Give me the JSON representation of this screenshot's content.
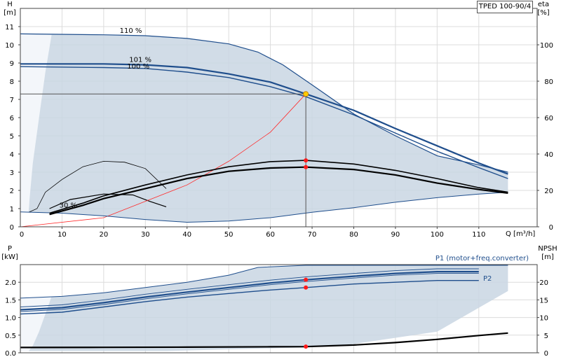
{
  "model": "TPED 100-90/4",
  "chart_data": [
    {
      "type": "line",
      "name": "head-efficiency",
      "y_title_top": "H",
      "y_unit": "[m]",
      "y2_title_top": "eta",
      "y2_unit": "[%]",
      "x_title": "Q [m³/h]",
      "xlim": [
        0,
        124
      ],
      "ylim": [
        0,
        12
      ],
      "y2lim": [
        0,
        120
      ],
      "x_ticks": [
        10,
        20,
        30,
        40,
        50,
        60,
        70,
        80,
        90,
        100,
        110
      ],
      "y_ticks": [
        0,
        1,
        2,
        3,
        4,
        5,
        6,
        7,
        8,
        9,
        10,
        11
      ],
      "y2_ticks": [
        0,
        20,
        40,
        60,
        80,
        100
      ],
      "duty_point": {
        "x": 68.5,
        "y": 7.3
      },
      "operating_area_upper": [
        [
          0,
          10.6
        ],
        [
          20,
          10.55
        ],
        [
          30,
          10.5
        ],
        [
          40,
          10.35
        ],
        [
          50,
          10.05
        ],
        [
          57,
          9.6
        ],
        [
          63,
          8.9
        ],
        [
          70,
          7.8
        ],
        [
          80,
          6.2
        ],
        [
          90,
          5.0
        ],
        [
          100,
          3.9
        ],
        [
          110,
          3.4
        ],
        [
          117,
          3.0
        ]
      ],
      "operating_area_lower": [
        [
          0,
          0.82
        ],
        [
          10,
          0.75
        ],
        [
          20,
          0.6
        ],
        [
          30,
          0.4
        ],
        [
          40,
          0.25
        ],
        [
          50,
          0.32
        ],
        [
          60,
          0.5
        ],
        [
          70,
          0.8
        ],
        [
          80,
          1.05
        ],
        [
          90,
          1.35
        ],
        [
          100,
          1.6
        ],
        [
          110,
          1.8
        ],
        [
          117,
          1.9
        ]
      ],
      "series": [
        {
          "name": "110 %",
          "label": "110 %",
          "values": [
            [
              0,
              10.6
            ],
            [
              20,
              10.55
            ],
            [
              30,
              10.5
            ],
            [
              40,
              10.35
            ],
            [
              50,
              10.05
            ],
            [
              57,
              9.6
            ],
            [
              63,
              8.9
            ],
            [
              70,
              7.8
            ],
            [
              80,
              6.2
            ],
            [
              90,
              5.0
            ],
            [
              100,
              3.9
            ],
            [
              110,
              3.4
            ],
            [
              117,
              3.0
            ]
          ]
        },
        {
          "name": "101 %",
          "label": "101 %",
          "values": [
            [
              0,
              8.95
            ],
            [
              20,
              8.95
            ],
            [
              30,
              8.9
            ],
            [
              40,
              8.75
            ],
            [
              50,
              8.4
            ],
            [
              60,
              7.95
            ],
            [
              68.5,
              7.3
            ],
            [
              80,
              6.4
            ],
            [
              90,
              5.4
            ],
            [
              100,
              4.45
            ],
            [
              110,
              3.5
            ],
            [
              117,
              2.9
            ]
          ]
        },
        {
          "name": "100 %",
          "label": "100 %",
          "values": [
            [
              0,
              8.8
            ],
            [
              20,
              8.75
            ],
            [
              30,
              8.7
            ],
            [
              40,
              8.5
            ],
            [
              50,
              8.2
            ],
            [
              60,
              7.7
            ],
            [
              68.5,
              7.15
            ],
            [
              80,
              6.15
            ],
            [
              90,
              5.15
            ],
            [
              100,
              4.15
            ],
            [
              110,
              3.25
            ],
            [
              117,
              2.65
            ]
          ]
        },
        {
          "name": "partial load",
          "label": "",
          "values": [
            [
              2,
              0.8
            ],
            [
              4,
              1.0
            ],
            [
              6,
              1.9
            ],
            [
              10,
              2.6
            ],
            [
              15,
              3.3
            ],
            [
              20,
              3.6
            ],
            [
              25,
              3.55
            ],
            [
              30,
              3.2
            ],
            [
              35,
              2.1
            ]
          ]
        },
        {
          "name": "partial load eta",
          "label": "",
          "values": [
            [
              7,
              1.0
            ],
            [
              12,
              1.5
            ],
            [
              20,
              1.8
            ],
            [
              27,
              1.75
            ],
            [
              31,
              1.4
            ],
            [
              35,
              1.1
            ]
          ]
        },
        {
          "name": "system curve",
          "label": "",
          "values": [
            [
              0,
              0.0
            ],
            [
              20,
              0.5
            ],
            [
              40,
              2.3
            ],
            [
              50,
              3.6
            ],
            [
              60,
              5.2
            ],
            [
              68.5,
              7.3
            ]
          ]
        }
      ],
      "eta_series": [
        {
          "name": "eta upper",
          "values": [
            [
              7,
              7.5
            ],
            [
              15,
              13
            ],
            [
              20,
              17
            ],
            [
              30,
              23
            ],
            [
              40,
              28.5
            ],
            [
              50,
              33
            ],
            [
              60,
              35.8
            ],
            [
              68.5,
              36.5
            ],
            [
              80,
              34.5
            ],
            [
              90,
              31
            ],
            [
              100,
              26.5
            ],
            [
              110,
              21.5
            ],
            [
              117,
              19
            ]
          ]
        },
        {
          "name": "eta lower",
          "values": [
            [
              7,
              6.8
            ],
            [
              15,
              11.8
            ],
            [
              20,
              15.5
            ],
            [
              30,
              21
            ],
            [
              40,
              26.5
            ],
            [
              50,
              30.5
            ],
            [
              60,
              32.3
            ],
            [
              68.5,
              32.8
            ],
            [
              80,
              31.5
            ],
            [
              90,
              28.5
            ],
            [
              100,
              24
            ],
            [
              110,
              20.5
            ],
            [
              117,
              18.5
            ]
          ]
        }
      ],
      "eta_points": [
        {
          "x": 68.5,
          "y": 36.5
        },
        {
          "x": 68.5,
          "y": 32.8
        }
      ],
      "small_label": "30 %"
    },
    {
      "type": "line",
      "name": "power-npsh",
      "y_title_top": "P",
      "y_unit": "[kW]",
      "y2_title_top": "NPSH",
      "y2_unit": "[m]",
      "xlim": [
        0,
        124
      ],
      "ylim": [
        0,
        2.5
      ],
      "y2lim": [
        0,
        25
      ],
      "y_ticks": [
        0.0,
        0.5,
        1.0,
        1.5,
        2.0
      ],
      "y_tick_labels": [
        "0.0",
        "0.5",
        "1.0",
        "1.5",
        "2.0"
      ],
      "y2_ticks": [
        0,
        5,
        10,
        15,
        20
      ],
      "area_upper": [
        [
          0,
          1.55
        ],
        [
          10,
          1.6
        ],
        [
          20,
          1.7
        ],
        [
          30,
          1.85
        ],
        [
          40,
          2.0
        ],
        [
          50,
          2.2
        ],
        [
          57,
          2.42
        ],
        [
          68.5,
          2.48
        ],
        [
          80,
          2.48
        ],
        [
          100,
          2.48
        ],
        [
          117,
          2.48
        ]
      ],
      "area_lower": [
        [
          0,
          0.05
        ],
        [
          20,
          0.05
        ],
        [
          35,
          0.05
        ],
        [
          50,
          0.1
        ],
        [
          68.5,
          0.15
        ],
        [
          80,
          0.25
        ],
        [
          100,
          0.6
        ],
        [
          117,
          1.75
        ]
      ],
      "series": [
        {
          "name": "P1 (motor+freq.converter)",
          "label": "P1 (motor+freq.converter)",
          "values": [
            [
              0,
              1.22
            ],
            [
              10,
              1.28
            ],
            [
              20,
              1.42
            ],
            [
              30,
              1.58
            ],
            [
              40,
              1.72
            ],
            [
              50,
              1.85
            ],
            [
              60,
              1.98
            ],
            [
              68.5,
              2.07
            ],
            [
              80,
              2.17
            ],
            [
              90,
              2.25
            ],
            [
              100,
              2.3
            ],
            [
              110,
              2.3
            ]
          ]
        },
        {
          "name": "P2",
          "label": "P2",
          "values": [
            [
              0,
              1.1
            ],
            [
              10,
              1.15
            ],
            [
              20,
              1.3
            ],
            [
              30,
              1.45
            ],
            [
              40,
              1.58
            ],
            [
              50,
              1.68
            ],
            [
              60,
              1.78
            ],
            [
              68.5,
              1.85
            ],
            [
              80,
              1.95
            ],
            [
              90,
              2.0
            ],
            [
              100,
              2.05
            ],
            [
              110,
              2.05
            ]
          ]
        },
        {
          "name": "NPSH",
          "label": "",
          "y_axis": "right",
          "values": [
            [
              0,
              1.5
            ],
            [
              20,
              1.55
            ],
            [
              40,
              1.6
            ],
            [
              60,
              1.7
            ],
            [
              68.5,
              1.75
            ],
            [
              80,
              2.2
            ],
            [
              90,
              2.9
            ],
            [
              100,
              3.8
            ],
            [
              110,
              4.9
            ],
            [
              117,
              5.6
            ]
          ]
        }
      ],
      "points": [
        {
          "x": 68.5,
          "y": 2.07
        },
        {
          "x": 68.5,
          "y": 1.85
        },
        {
          "x": 68.5,
          "y": 0.175
        }
      ]
    }
  ]
}
